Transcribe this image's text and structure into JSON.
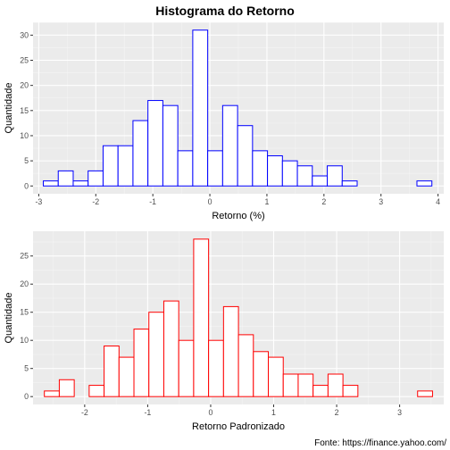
{
  "title": "Histograma do Retorno",
  "caption": "Fonte: https://finance.yahoo.com/",
  "chart_data": [
    {
      "type": "bar",
      "xlabel": "Retorno (%)",
      "ylabel": "Quantidade",
      "bar_color": "#0000ff",
      "bar_fill": "#ffffff",
      "xlim": [
        -3.1,
        4.1
      ],
      "ylim": [
        -1.55,
        32.55
      ],
      "xticks": [
        -3,
        -2,
        -1,
        0,
        1,
        2,
        3,
        4
      ],
      "yticks": [
        0,
        5,
        10,
        15,
        20,
        25,
        30
      ],
      "bin_width": 0.262,
      "bin_start": -2.92,
      "values": [
        1,
        3,
        1,
        3,
        8,
        8,
        13,
        17,
        16,
        7,
        31,
        7,
        16,
        12,
        7,
        6,
        5,
        4,
        2,
        4,
        1,
        0,
        0,
        0,
        0,
        1
      ],
      "grid": true
    },
    {
      "type": "bar",
      "xlabel": "Retorno Padronizado",
      "ylabel": "Quantidade",
      "bar_color": "#ff0000",
      "bar_fill": "#ffffff",
      "xlim": [
        -2.82,
        3.7
      ],
      "ylim": [
        -1.4,
        29.4
      ],
      "xticks": [
        -2,
        -1,
        0,
        1,
        2,
        3
      ],
      "yticks": [
        0,
        5,
        10,
        15,
        20,
        25
      ],
      "bin_width": 0.237,
      "bin_start": -2.64,
      "values": [
        1,
        3,
        0,
        2,
        9,
        7,
        12,
        15,
        17,
        10,
        28,
        10,
        16,
        11,
        8,
        7,
        4,
        4,
        2,
        4,
        2,
        0,
        0,
        0,
        0,
        1
      ],
      "grid": true
    }
  ]
}
